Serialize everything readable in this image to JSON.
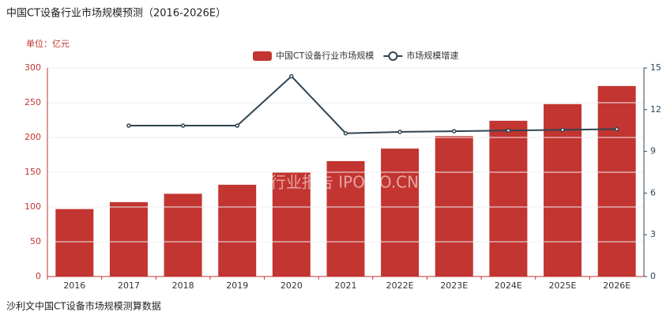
{
  "chart_data": {
    "type": "bar-line",
    "title": "中国CT设备行业市场规模预测（2016-2026E）",
    "unit_label": "单位：亿元",
    "source": "沙利文中国CT设备市场规模测算数据",
    "watermark": "行业报告 IPOIPO.CN",
    "categories": [
      "2016",
      "2017",
      "2018",
      "2019",
      "2020",
      "2021",
      "2022E",
      "2023E",
      "2024E",
      "2025E",
      "2026E"
    ],
    "series": [
      {
        "name": "中国CT设备行业市场规模",
        "type": "bar",
        "color": "#c23531",
        "values": [
          97,
          107,
          119,
          132,
          150,
          166,
          184,
          202,
          224,
          248,
          274
        ]
      },
      {
        "name": "市场规模增速",
        "type": "line",
        "axis": "y2",
        "color": "#2f4554",
        "values": [
          null,
          10.85,
          10.85,
          10.85,
          14.4,
          10.3,
          10.4,
          10.45,
          10.5,
          10.55,
          10.6
        ]
      }
    ],
    "ylim": [
      0,
      300
    ],
    "yticks": [
      0,
      50,
      100,
      150,
      200,
      250,
      300
    ],
    "y2lim": [
      0,
      15
    ],
    "y2ticks": [
      0,
      3,
      6,
      9,
      12,
      15
    ],
    "grid": true
  }
}
